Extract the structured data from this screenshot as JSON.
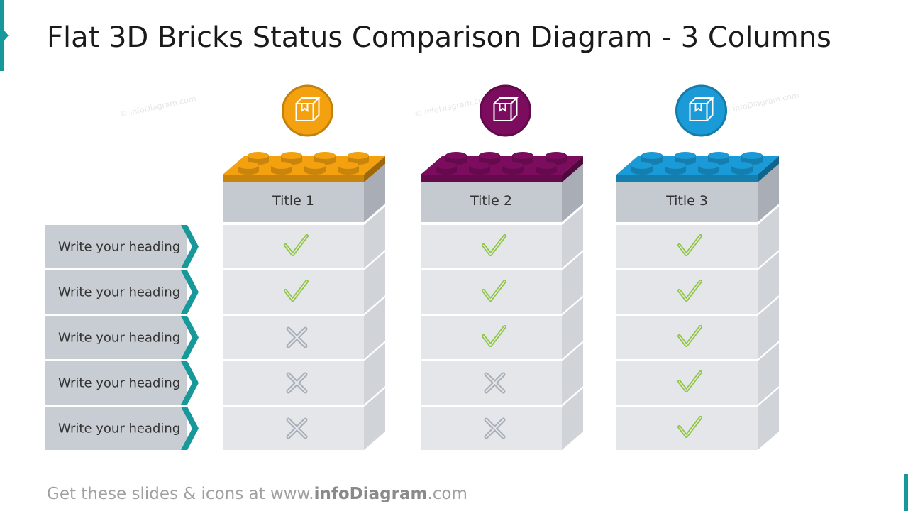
{
  "title": "Flat 3D Bricks Status Comparison Diagram - 3 Columns",
  "rows": [
    "Write your heading",
    "Write your heading",
    "Write your heading",
    "Write your heading",
    "Write your heading"
  ],
  "columns": [
    {
      "title": "Title 1",
      "color": "#f4a10f",
      "statuses": [
        true,
        true,
        false,
        false,
        false
      ]
    },
    {
      "title": "Title 2",
      "color": "#7b0c5e",
      "statuses": [
        true,
        true,
        true,
        false,
        false
      ]
    },
    {
      "title": "Title 3",
      "color": "#1a9ad6",
      "statuses": [
        true,
        true,
        true,
        true,
        true
      ]
    }
  ],
  "watermark": "© infoDiagram.com",
  "footer": {
    "prefix": "Get these slides & icons at www.",
    "brand": "infoDiagram",
    "suffix": ".com"
  }
}
